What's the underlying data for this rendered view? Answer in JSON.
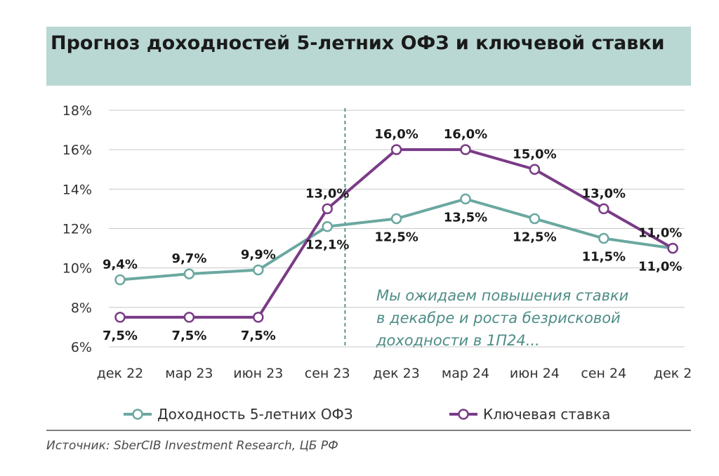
{
  "title": "Прогноз доходностей 5-летних ОФЗ и ключевой ставки",
  "source": "Источник: SberCIB Investment Research, ЦБ РФ",
  "annotation": [
    "Мы ожидаем повышения ставки",
    "в декабре и роста безрисковой",
    "доходности в 1П24..."
  ],
  "colors": {
    "ofz": "#6aa8a0",
    "key_rate": "#7a3b86",
    "title_bg": "#b9d7d3",
    "annotation": "#4e8d86"
  },
  "chart_data": {
    "type": "line",
    "categories": [
      "дек 22",
      "мар 23",
      "июн 23",
      "сен 23",
      "дек 23",
      "мар 24",
      "июн 24",
      "сен 24",
      "дек 2"
    ],
    "ylim": [
      6,
      18
    ],
    "yticks": [
      "6%",
      "8%",
      "10%",
      "12%",
      "14%",
      "16%",
      "18%"
    ],
    "ytick_values": [
      6,
      8,
      10,
      12,
      14,
      16,
      18
    ],
    "grid": true,
    "legend_position": "bottom",
    "forecast_divider_between": [
      "сен 23",
      "дек 23"
    ],
    "series": [
      {
        "name": "Доходность 5-летних ОФЗ",
        "values": [
          9.4,
          9.7,
          9.9,
          12.1,
          12.5,
          13.5,
          12.5,
          11.5,
          11.0
        ],
        "labels": [
          "9,4%",
          "9,7%",
          "9,9%",
          "12,1%",
          "12,5%",
          "13,5%",
          "12,5%",
          "11,5%",
          "11,0%"
        ],
        "label_side": [
          "above",
          "above",
          "above",
          "below",
          "below",
          "below",
          "below",
          "below",
          "below"
        ]
      },
      {
        "name": "Ключевая ставка",
        "values": [
          7.5,
          7.5,
          7.5,
          13.0,
          16.0,
          16.0,
          15.0,
          13.0,
          11.0
        ],
        "labels": [
          "7,5%",
          "7,5%",
          "7,5%",
          "13,0%",
          "16,0%",
          "16,0%",
          "15,0%",
          "13,0%",
          "11,0%"
        ],
        "label_side": [
          "below",
          "below",
          "below",
          "above",
          "above",
          "above",
          "above",
          "above",
          "above"
        ]
      }
    ]
  }
}
